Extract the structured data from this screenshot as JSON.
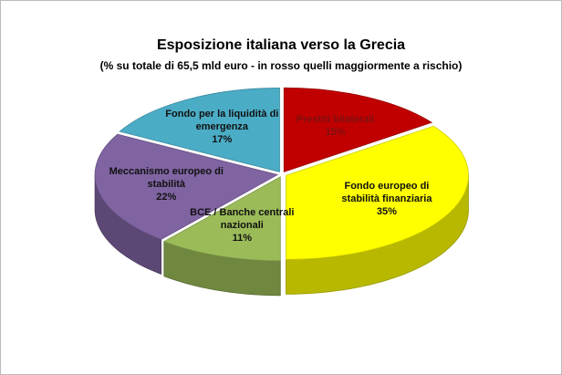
{
  "chart_data": {
    "type": "pie3d",
    "title": "Esposizione italiana verso la Grecia",
    "subtitle": "(% su totale di 65,5 mld euro - in rosso quelli maggiormente a rischio)",
    "categories": [
      "Prestiti bilaterali",
      "Fondo europeo di stabilità finanziaria",
      "BCE / Banche centrali nazionali",
      "Meccanismo europeo di stabilità",
      "Fondo per la liquidità di emergenza"
    ],
    "values": [
      15,
      35,
      11,
      22,
      17
    ],
    "value_labels": [
      "15%",
      "35%",
      "11%",
      "22%",
      "17%"
    ],
    "colors": [
      "#c00000",
      "#ffff00",
      "#9bbb59",
      "#8064a2",
      "#4bacc6"
    ]
  }
}
